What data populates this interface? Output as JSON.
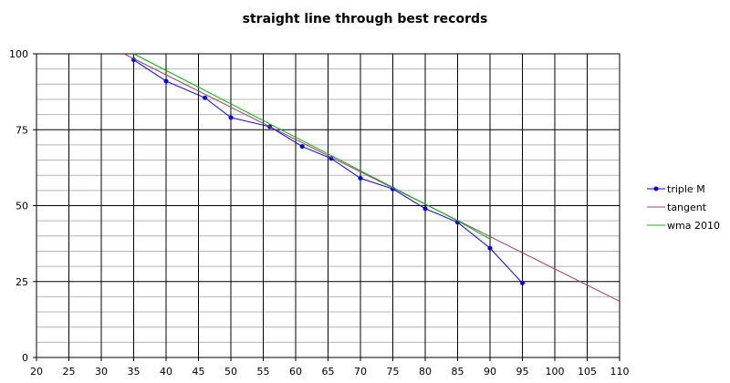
{
  "chart_data": {
    "type": "line",
    "title": "straight line through best records",
    "xlabel": "",
    "ylabel": "",
    "xlim": [
      20,
      110
    ],
    "ylim": [
      0,
      100
    ],
    "x_ticks": [
      20,
      25,
      30,
      35,
      40,
      45,
      50,
      55,
      60,
      65,
      70,
      75,
      80,
      85,
      90,
      95,
      100,
      105,
      110
    ],
    "y_ticks": [
      0,
      25,
      50,
      75,
      100
    ],
    "grid": true,
    "legend_position": "right",
    "series": [
      {
        "name": "triple M",
        "color": "#0000ff",
        "markers": true,
        "points": [
          [
            35,
            98
          ],
          [
            40,
            91
          ],
          [
            46,
            85.5
          ],
          [
            50,
            79
          ],
          [
            56,
            76
          ],
          [
            61,
            69.5
          ],
          [
            65.5,
            65.5
          ],
          [
            70,
            59
          ],
          [
            75,
            55.5
          ],
          [
            80,
            49
          ],
          [
            85,
            44.5
          ],
          [
            90,
            36
          ],
          [
            95,
            24.5
          ]
        ]
      },
      {
        "name": "tangent",
        "color": "#a0406a",
        "markers": false,
        "points": [
          [
            33.5,
            100
          ],
          [
            110,
            18.5
          ]
        ]
      },
      {
        "name": "wma 2010",
        "color": "#00bb00",
        "markers": false,
        "points": [
          [
            35,
            100
          ],
          [
            85,
            45
          ],
          [
            90,
            39
          ]
        ]
      }
    ]
  }
}
